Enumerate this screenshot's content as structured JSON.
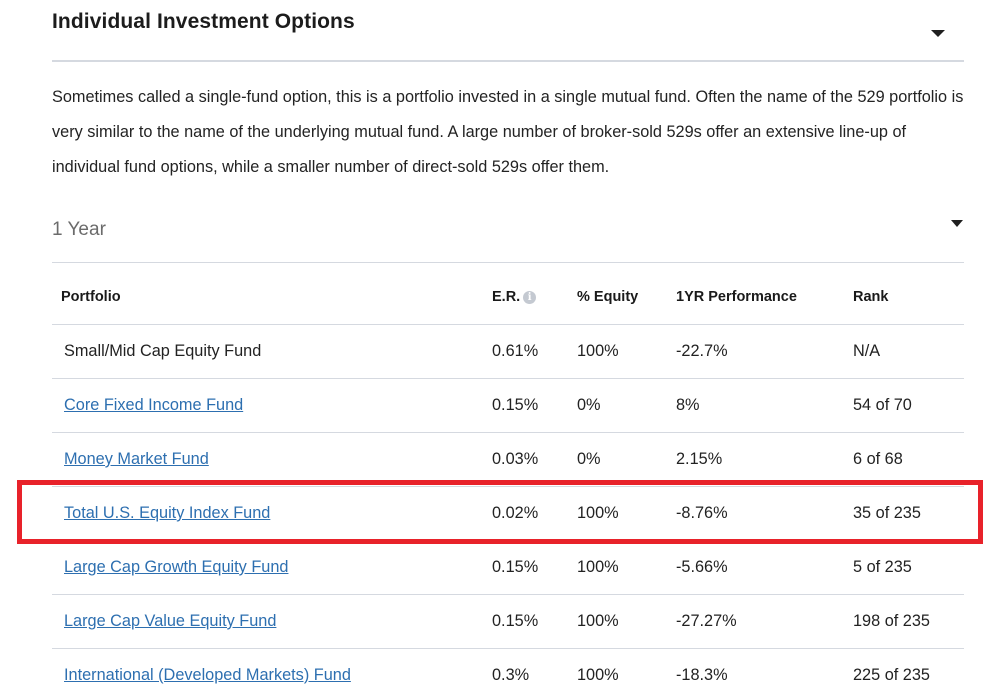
{
  "section": {
    "title": "Individual Investment Options",
    "description": "Sometimes called a single-fund option, this is a portfolio invested in a single mutual fund. Often the name of the 529 portfolio is very similar to the name of the underlying mutual fund. A large number of broker-sold 529s offer an extensive line-up of individual fund options, while a smaller number of direct-sold 529s offer them."
  },
  "period_select": {
    "selected": "1 Year"
  },
  "table": {
    "headers": {
      "portfolio": "Portfolio",
      "er": "E.R.",
      "equity": "% Equity",
      "performance": "1YR Performance",
      "rank": "Rank"
    },
    "info_icon_glyph": "i",
    "rows": [
      {
        "portfolio": "Small/Mid Cap Equity Fund",
        "er": "0.61%",
        "equity": "100%",
        "performance": "-22.7%",
        "rank": "N/A",
        "is_link": false
      },
      {
        "portfolio": "Core Fixed Income Fund",
        "er": "0.15%",
        "equity": "0%",
        "performance": "8%",
        "rank": "54 of 70",
        "is_link": true
      },
      {
        "portfolio": "Money Market Fund",
        "er": "0.03%",
        "equity": "0%",
        "performance": "2.15%",
        "rank": "6 of 68",
        "is_link": true
      },
      {
        "portfolio": "Total U.S. Equity Index Fund",
        "er": "0.02%",
        "equity": "100%",
        "performance": "-8.76%",
        "rank": "35 of 235",
        "is_link": true
      },
      {
        "portfolio": "Large Cap Growth Equity Fund",
        "er": "0.15%",
        "equity": "100%",
        "performance": "-5.66%",
        "rank": "5 of 235",
        "is_link": true
      },
      {
        "portfolio": "Large Cap Value Equity Fund",
        "er": "0.15%",
        "equity": "100%",
        "performance": "-27.27%",
        "rank": "198 of 235",
        "is_link": true
      },
      {
        "portfolio": "International (Developed Markets) Fund",
        "er": "0.3%",
        "equity": "100%",
        "performance": "-18.3%",
        "rank": "225 of 235",
        "is_link": true
      }
    ]
  },
  "colors": {
    "link": "#2d6fb0",
    "highlight": "#e8222a",
    "divider": "#d5d9e0"
  }
}
